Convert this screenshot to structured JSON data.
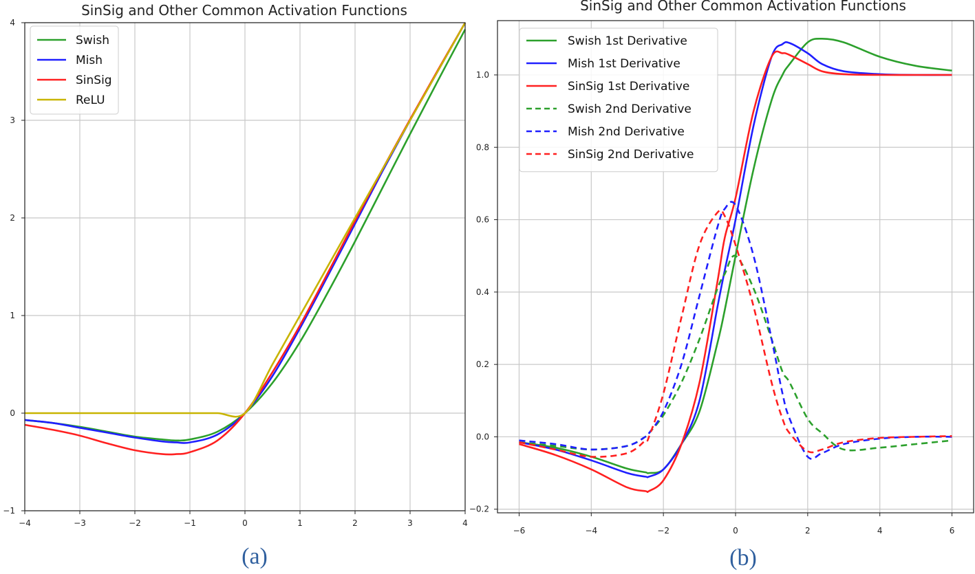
{
  "chart_data": [
    {
      "type": "line",
      "title": "SinSig and Other Common Activation Functions",
      "caption": "(a)",
      "xlim": [
        -4,
        4
      ],
      "ylim": [
        -1,
        4
      ],
      "x_ticks": [
        -4,
        -3,
        -2,
        -1,
        0,
        1,
        2,
        3,
        4
      ],
      "y_ticks": [
        -1,
        0,
        1,
        2,
        3,
        4
      ],
      "x_tick_labels": [
        "−4",
        "−3",
        "−2",
        "−1",
        "0",
        "1",
        "2",
        "3",
        "4"
      ],
      "y_tick_labels": [
        "−1",
        "0",
        "1",
        "2",
        "3",
        "4"
      ],
      "grid": true,
      "legend_position": "upper-left",
      "x": [
        -4,
        -3.5,
        -3,
        -2.5,
        -2,
        -1.5,
        -1.25,
        -1,
        -0.5,
        0,
        0.5,
        1,
        1.5,
        2,
        2.5,
        3,
        3.5,
        4
      ],
      "series": [
        {
          "name": "Swish",
          "color": "#2ca02c",
          "dashed": false,
          "values": [
            -0.07,
            -0.1,
            -0.14,
            -0.19,
            -0.24,
            -0.27,
            -0.28,
            -0.27,
            -0.19,
            0,
            0.31,
            0.73,
            1.23,
            1.76,
            2.31,
            2.86,
            3.4,
            3.93
          ]
        },
        {
          "name": "Mish",
          "color": "#1f1fff",
          "dashed": false,
          "values": [
            -0.07,
            -0.1,
            -0.15,
            -0.2,
            -0.25,
            -0.29,
            -0.3,
            -0.3,
            -0.22,
            0,
            0.38,
            0.87,
            1.4,
            1.94,
            2.48,
            3.0,
            3.5,
            4.0
          ]
        },
        {
          "name": "SinSig",
          "color": "#ff2020",
          "dashed": false,
          "values": [
            -0.12,
            -0.17,
            -0.23,
            -0.31,
            -0.38,
            -0.42,
            -0.42,
            -0.4,
            -0.28,
            0,
            0.42,
            0.9,
            1.43,
            1.97,
            2.5,
            3.01,
            3.51,
            4.0
          ]
        },
        {
          "name": "ReLU",
          "color": "#c8b400",
          "dashed": false,
          "values": [
            0,
            0,
            0,
            0,
            0,
            0,
            0,
            0,
            0,
            0,
            0.5,
            1,
            1.5,
            2,
            2.5,
            3,
            3.5,
            4
          ]
        }
      ]
    },
    {
      "type": "line",
      "title": "SinSig and Other Common Activation Functions",
      "caption": "(b)",
      "xlim": [
        -6.6,
        6.6
      ],
      "ylim": [
        -0.21,
        1.15
      ],
      "x_ticks": [
        -6,
        -4,
        -2,
        0,
        2,
        4,
        6
      ],
      "y_ticks": [
        -0.2,
        0.0,
        0.2,
        0.4,
        0.6,
        0.8,
        1.0
      ],
      "x_tick_labels": [
        "−6",
        "−4",
        "−2",
        "0",
        "2",
        "4",
        "6"
      ],
      "y_tick_labels": [
        "−0.2",
        "0.0",
        "0.2",
        "0.4",
        "0.6",
        "0.8",
        "1.0"
      ],
      "grid": true,
      "legend_position": "upper-left",
      "x": [
        -6,
        -5,
        -4,
        -3,
        -2.5,
        -2.4,
        -2,
        -1.5,
        -1,
        -0.5,
        -0.3,
        0,
        0.5,
        1,
        1.3,
        1.5,
        2,
        2.4,
        3,
        4,
        5,
        6
      ],
      "series": [
        {
          "name": "Swish 1st Derivative",
          "color": "#2ca02c",
          "dashed": false,
          "values": [
            -0.015,
            -0.03,
            -0.055,
            -0.088,
            -0.098,
            -0.1,
            -0.09,
            -0.02,
            0.07,
            0.26,
            0.35,
            0.5,
            0.74,
            0.93,
            1.0,
            1.03,
            1.09,
            1.1,
            1.09,
            1.05,
            1.025,
            1.012
          ]
        },
        {
          "name": "Mish 1st Derivative",
          "color": "#1f1fff",
          "dashed": false,
          "values": [
            -0.015,
            -0.035,
            -0.065,
            -0.1,
            -0.11,
            -0.11,
            -0.09,
            -0.02,
            0.1,
            0.36,
            0.46,
            0.6,
            0.86,
            1.05,
            1.085,
            1.088,
            1.06,
            1.03,
            1.01,
            1.002,
            1.0,
            1.0
          ]
        },
        {
          "name": "SinSig 1st Derivative",
          "color": "#ff2020",
          "dashed": false,
          "values": [
            -0.02,
            -0.05,
            -0.09,
            -0.14,
            -0.15,
            -0.15,
            -0.12,
            -0.02,
            0.15,
            0.43,
            0.55,
            0.66,
            0.9,
            1.05,
            1.06,
            1.055,
            1.03,
            1.01,
            1.002,
            1.0,
            1.0,
            1.0
          ]
        },
        {
          "name": "Swish 2nd Derivative",
          "color": "#2ca02c",
          "dashed": true,
          "values": [
            -0.015,
            -0.025,
            -0.035,
            -0.025,
            0.0,
            0.01,
            0.06,
            0.15,
            0.27,
            0.41,
            0.45,
            0.5,
            0.41,
            0.27,
            0.18,
            0.15,
            0.05,
            0.01,
            -0.035,
            -0.03,
            -0.02,
            -0.01
          ]
        },
        {
          "name": "Mish 2nd Derivative",
          "color": "#1f1fff",
          "dashed": true,
          "values": [
            -0.01,
            -0.02,
            -0.035,
            -0.025,
            0.0,
            0.01,
            0.07,
            0.2,
            0.39,
            0.58,
            0.63,
            0.64,
            0.5,
            0.27,
            0.12,
            0.05,
            -0.055,
            -0.045,
            -0.02,
            -0.005,
            0.0,
            0.0
          ]
        },
        {
          "name": "SinSig 2nd Derivative",
          "color": "#ff2020",
          "dashed": true,
          "values": [
            -0.015,
            -0.035,
            -0.055,
            -0.045,
            -0.01,
            0.0,
            0.12,
            0.33,
            0.53,
            0.62,
            0.61,
            0.53,
            0.36,
            0.15,
            0.05,
            0.01,
            -0.04,
            -0.035,
            -0.015,
            -0.003,
            0.0,
            0.002
          ]
        }
      ]
    }
  ]
}
